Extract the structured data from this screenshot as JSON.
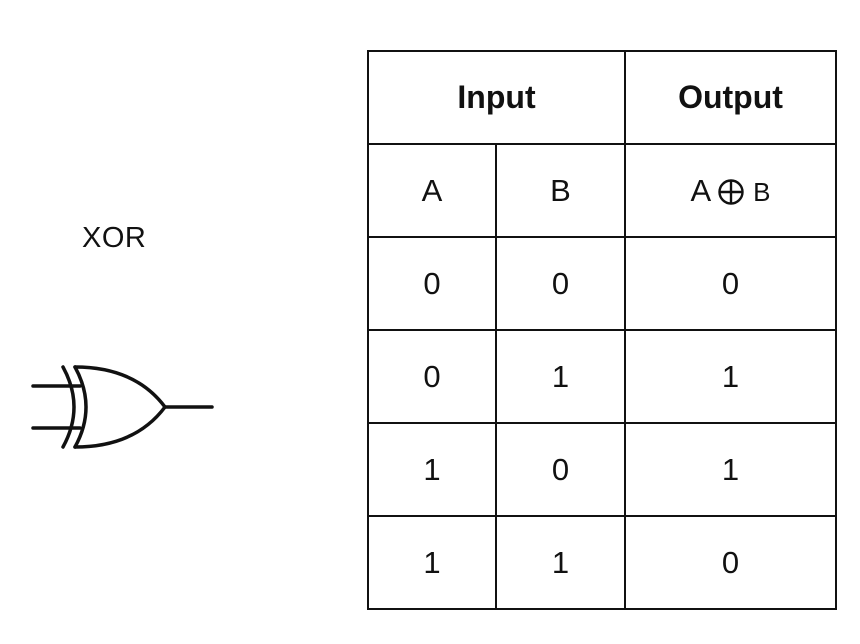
{
  "gate": {
    "label": "XOR",
    "symbol_icon": "xor-gate-icon"
  },
  "truth_table": {
    "group_headers": {
      "input": "Input",
      "output": "Output"
    },
    "column_headers": {
      "a": "A",
      "b": "B",
      "out_left": "A",
      "out_operator_icon": "circled-plus-icon",
      "out_right": "B"
    },
    "rows": [
      {
        "a": "0",
        "b": "0",
        "out": "0"
      },
      {
        "a": "0",
        "b": "1",
        "out": "1"
      },
      {
        "a": "1",
        "b": "0",
        "out": "1"
      },
      {
        "a": "1",
        "b": "1",
        "out": "0"
      }
    ]
  }
}
